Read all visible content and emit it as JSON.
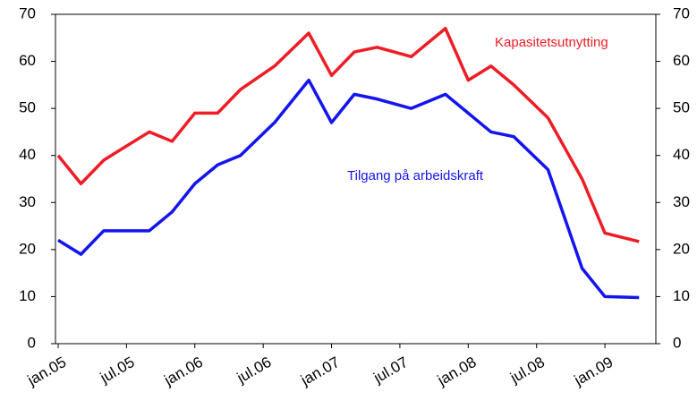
{
  "chart_data": {
    "type": "line",
    "x": [
      "2005-01",
      "2005-03",
      "2005-05",
      "2005-09",
      "2005-11",
      "2006-01",
      "2006-03",
      "2006-05",
      "2006-08",
      "2006-11",
      "2007-01",
      "2007-03",
      "2007-05",
      "2007-08",
      "2007-11",
      "2008-01",
      "2008-03",
      "2008-05",
      "2008-08",
      "2008-11",
      "2009-01",
      "2009-04"
    ],
    "series": [
      {
        "name": "Kapasitetsutnytting",
        "color": "#ee1c25",
        "values": [
          40,
          34,
          39,
          45,
          43,
          49,
          49,
          54,
          59,
          66,
          57,
          62,
          63,
          61,
          67,
          56,
          59,
          55,
          48,
          35,
          23.5,
          21.7
        ]
      },
      {
        "name": "Tilgang på arbeidskraft",
        "color": "#1414f0",
        "values": [
          22,
          19,
          24,
          24,
          28,
          34,
          38,
          40,
          47,
          56,
          47,
          53,
          52,
          50,
          53,
          49,
          45,
          44,
          37,
          16,
          10,
          9.8
        ]
      }
    ],
    "xlim": [
      "2005-01",
      "2009-05"
    ],
    "xticks": [
      {
        "value": "2005-01",
        "label": "jan.05"
      },
      {
        "value": "2005-07",
        "label": "jul.05"
      },
      {
        "value": "2006-01",
        "label": "jan.06"
      },
      {
        "value": "2006-07",
        "label": "jul.06"
      },
      {
        "value": "2007-01",
        "label": "jan.07"
      },
      {
        "value": "2007-07",
        "label": "jul.07"
      },
      {
        "value": "2008-01",
        "label": "jan.08"
      },
      {
        "value": "2008-07",
        "label": "jul.08"
      },
      {
        "value": "2009-01",
        "label": "jan.09"
      }
    ],
    "ylim": [
      0,
      70
    ],
    "yticks": [
      0,
      10,
      20,
      30,
      40,
      50,
      60,
      70
    ],
    "y2lim": [
      0,
      70
    ],
    "y2ticks": [
      0,
      10,
      20,
      30,
      40,
      50,
      60,
      70
    ]
  }
}
